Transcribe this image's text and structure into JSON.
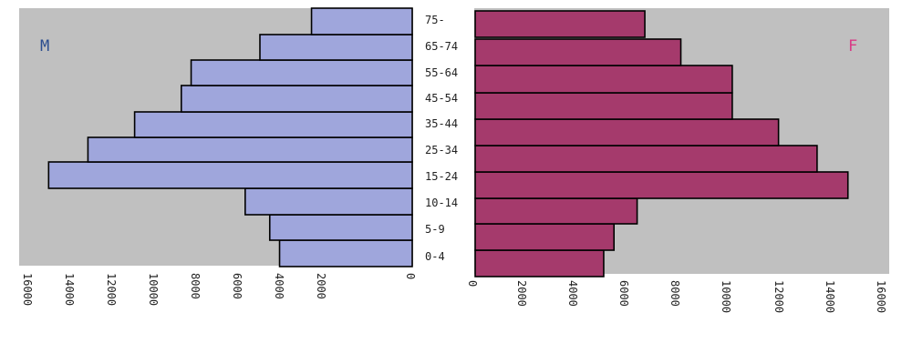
{
  "chart_data": {
    "type": "bar",
    "orientation": "horizontal",
    "categories": [
      "0-4",
      "5-9",
      "10-14",
      "15-24",
      "25-34",
      "35-44",
      "45-54",
      "55-64",
      "65-74",
      "75-"
    ],
    "series": [
      {
        "name": "M",
        "values": [
          5400,
          5800,
          6800,
          14800,
          13200,
          11300,
          9400,
          9000,
          6200,
          4100
        ]
      },
      {
        "name": "F",
        "values": [
          5000,
          5400,
          6300,
          14500,
          13300,
          11800,
          10000,
          10000,
          8000,
          6600
        ]
      }
    ],
    "left_axis": {
      "ticks": [
        "16000",
        "14000",
        "12000",
        "10000",
        "8000",
        "6000",
        "4000",
        "2000",
        "0"
      ],
      "range": [
        0,
        16000
      ]
    },
    "right_axis": {
      "ticks": [
        "0",
        "2000",
        "4000",
        "6000",
        "8000",
        "10000",
        "12000",
        "14000",
        "16000"
      ],
      "range": [
        0,
        16000
      ]
    },
    "labels": {
      "left": "M",
      "right": "F"
    },
    "colors": {
      "m": "#9fa6dc",
      "f": "#a53a6c",
      "m_label": "#2b4d8f",
      "f_label": "#d93a86",
      "background": "#c0c0c0"
    },
    "grid": false
  }
}
